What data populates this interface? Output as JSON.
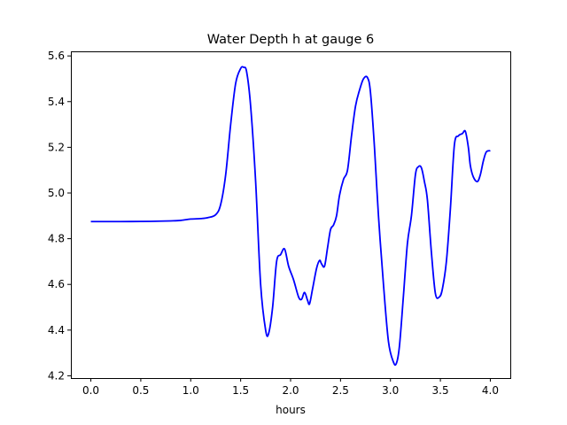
{
  "chart_data": {
    "type": "line",
    "title": "Water Depth h at gauge 6",
    "xlabel": "hours",
    "ylabel": "",
    "xlim": [
      -0.2,
      4.2
    ],
    "ylim": [
      4.19,
      5.62
    ],
    "xticks": [
      0.0,
      0.5,
      1.0,
      1.5,
      2.0,
      2.5,
      3.0,
      3.5,
      4.0
    ],
    "xtick_labels": [
      "0.0",
      "0.5",
      "1.0",
      "1.5",
      "2.0",
      "2.5",
      "3.0",
      "3.5",
      "4.0"
    ],
    "yticks": [
      4.2,
      4.4,
      4.6,
      4.8,
      5.0,
      5.2,
      5.4,
      5.6
    ],
    "ytick_labels": [
      "4.2",
      "4.4",
      "4.6",
      "4.8",
      "5.0",
      "5.2",
      "5.4",
      "5.6"
    ],
    "grid": false,
    "line_color": "#0000ff",
    "series": [
      {
        "x": [
          0.0,
          0.3,
          0.6,
          0.8,
          0.9,
          1.0,
          1.1,
          1.17,
          1.25,
          1.3,
          1.35,
          1.4,
          1.45,
          1.5,
          1.53,
          1.56,
          1.6,
          1.65,
          1.7,
          1.75,
          1.78,
          1.82,
          1.86,
          1.9,
          1.94,
          1.98,
          2.03,
          2.08,
          2.11,
          2.14,
          2.17,
          2.19,
          2.22,
          2.26,
          2.29,
          2.31,
          2.34,
          2.37,
          2.4,
          2.43,
          2.46,
          2.49,
          2.53,
          2.57,
          2.61,
          2.65,
          2.69,
          2.73,
          2.77,
          2.8,
          2.84,
          2.88,
          2.93,
          2.98,
          3.03,
          3.06,
          3.09,
          3.13,
          3.17,
          3.21,
          3.25,
          3.28,
          3.31,
          3.34,
          3.37,
          3.41,
          3.45,
          3.49,
          3.52,
          3.56,
          3.6,
          3.64,
          3.68,
          3.72,
          3.75,
          3.78,
          3.8,
          3.83,
          3.87,
          3.9,
          3.93,
          3.96,
          4.0
        ],
        "y": [
          4.875,
          4.875,
          4.876,
          4.878,
          4.88,
          4.886,
          4.888,
          4.892,
          4.905,
          4.95,
          5.08,
          5.3,
          5.48,
          5.545,
          5.55,
          5.53,
          5.38,
          5.05,
          4.6,
          4.4,
          4.385,
          4.5,
          4.7,
          4.73,
          4.755,
          4.68,
          4.62,
          4.545,
          4.535,
          4.565,
          4.53,
          4.515,
          4.58,
          4.67,
          4.705,
          4.69,
          4.68,
          4.76,
          4.84,
          4.86,
          4.9,
          4.99,
          5.06,
          5.1,
          5.25,
          5.38,
          5.45,
          5.5,
          5.505,
          5.44,
          5.2,
          4.9,
          4.6,
          4.35,
          4.26,
          4.255,
          4.33,
          4.55,
          4.78,
          4.9,
          5.08,
          5.115,
          5.11,
          5.05,
          4.97,
          4.74,
          4.56,
          4.545,
          4.58,
          4.7,
          4.93,
          5.21,
          5.25,
          5.26,
          5.27,
          5.2,
          5.12,
          5.07,
          5.05,
          5.08,
          5.14,
          5.18,
          5.185
        ]
      }
    ]
  }
}
